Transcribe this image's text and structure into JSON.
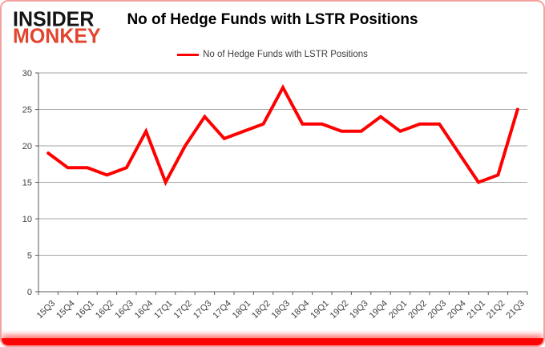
{
  "logo": {
    "line1": "INSIDER",
    "line2": "MONKEY"
  },
  "header": {
    "title": "No of Hedge Funds with LSTR Positions"
  },
  "legend": {
    "label": "No of Hedge Funds with LSTR Positions",
    "line_color": "#ff0000"
  },
  "chart_data": {
    "type": "line",
    "title": "No of Hedge Funds with LSTR Positions",
    "categories": [
      "15Q3",
      "15Q4",
      "16Q1",
      "16Q2",
      "16Q3",
      "16Q4",
      "17Q1",
      "17Q2",
      "17Q3",
      "17Q4",
      "18Q1",
      "18Q2",
      "18Q3",
      "18Q4",
      "19Q1",
      "19Q2",
      "19Q3",
      "19Q4",
      "20Q1",
      "20Q2",
      "20Q3",
      "20Q4",
      "21Q1",
      "21Q2",
      "21Q3"
    ],
    "values": [
      19,
      17,
      17,
      16,
      17,
      22,
      15,
      20,
      24,
      21,
      22,
      23,
      28,
      23,
      23,
      22,
      22,
      24,
      22,
      23,
      23,
      19,
      15,
      16,
      25
    ],
    "xlabel": "",
    "ylabel": "",
    "ylim": [
      0,
      30
    ],
    "yticks": [
      0,
      5,
      10,
      15,
      20,
      25,
      30
    ],
    "grid": true,
    "legend_position": "top",
    "series_name": "No of Hedge Funds with LSTR Positions",
    "line_color": "#ff0000",
    "gridline_color": "#a6a6a6",
    "axis_color": "#595959",
    "tick_label_color": "#3f3f3f"
  }
}
